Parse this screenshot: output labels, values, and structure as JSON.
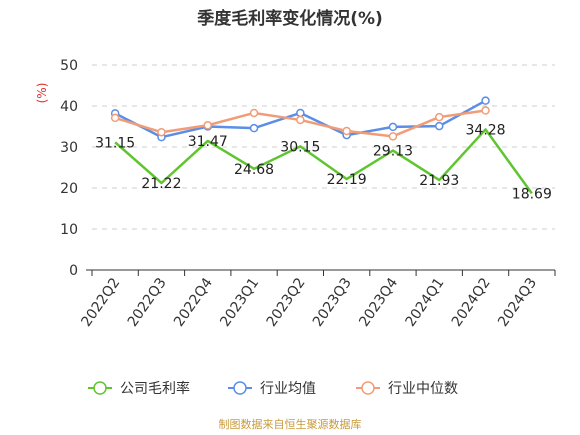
{
  "chart_data": {
    "type": "line",
    "title": "季度毛利率变化情况(%)",
    "unit_label": "(%)",
    "ylim": [
      0,
      50
    ],
    "yticks": [
      0,
      10,
      20,
      30,
      40,
      50
    ],
    "grid": true,
    "legend_position": "bottom",
    "categories": [
      "2022Q2",
      "2022Q3",
      "2022Q4",
      "2023Q1",
      "2023Q2",
      "2023Q3",
      "2023Q4",
      "2024Q1",
      "2024Q2",
      "2024Q3"
    ],
    "series": [
      {
        "name": "公司毛利率",
        "color": "#5ec52e",
        "marker": "none",
        "show_labels": true,
        "values": [
          31.15,
          21.22,
          31.47,
          24.68,
          30.15,
          22.19,
          29.13,
          21.93,
          34.28,
          18.69
        ],
        "labels": [
          "31.15",
          "21.22",
          "31.47",
          "24.68",
          "30.15",
          "22.19",
          "29.13",
          "21.93",
          "34.28",
          "18.69"
        ]
      },
      {
        "name": "行业均值",
        "color": "#5b8ee6",
        "marker": "circle",
        "show_labels": false,
        "values": [
          38.2,
          32.4,
          35.0,
          34.6,
          38.3,
          32.9,
          34.9,
          35.1,
          41.3,
          null
        ]
      },
      {
        "name": "行业中位数",
        "color": "#f29c77",
        "marker": "circle",
        "show_labels": false,
        "values": [
          37.1,
          33.6,
          35.3,
          38.3,
          36.6,
          33.9,
          32.6,
          37.3,
          38.9,
          null
        ]
      }
    ]
  },
  "source_text": "制图数据来自恒生聚源数据库"
}
